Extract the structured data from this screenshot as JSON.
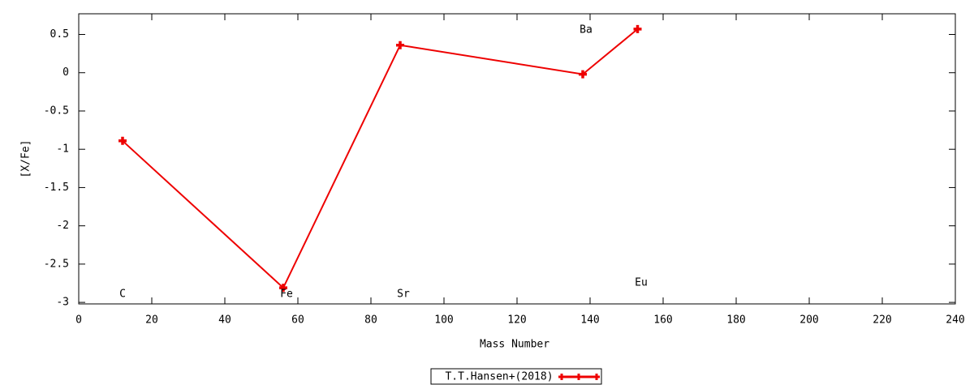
{
  "chart_data": {
    "type": "line",
    "x_label": "Mass Number",
    "y_label": "[X/Fe]",
    "x": [
      12,
      56,
      88,
      138,
      153
    ],
    "point_labels": [
      "C",
      "Fe",
      "Sr",
      "Ba",
      "Eu"
    ],
    "series": [
      {
        "name": "T.T.Hansen+(2018)",
        "color": "#ee0000",
        "values": [
          -0.89,
          -2.81,
          0.36,
          -0.02,
          0.57
        ]
      }
    ],
    "xlim": [
      0,
      240
    ],
    "xticks": [
      0,
      20,
      40,
      60,
      80,
      100,
      120,
      140,
      160,
      180,
      200,
      220,
      240
    ],
    "ylim": [
      -3.02,
      0.77
    ],
    "yticks": [
      -3,
      -2.5,
      -2,
      -1.5,
      -1,
      -0.5,
      0,
      0.5
    ],
    "grid": false,
    "legend": "bottom"
  }
}
